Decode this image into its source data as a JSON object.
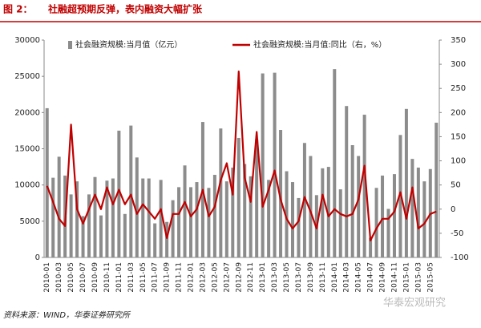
{
  "header": {
    "figure": "图 2：",
    "title": "社融超预期反弹，表内融资大幅扩张"
  },
  "chart_data": {
    "type": "bar-line",
    "categories": [
      "2010-01",
      null,
      "2010-03",
      null,
      "2010-05",
      null,
      "2010-07",
      null,
      "2010-09",
      null,
      "2010-11",
      null,
      "2011-01",
      null,
      "2011-03",
      null,
      "2011-05",
      null,
      "2011-07",
      null,
      "2011-09",
      null,
      "2011-11",
      null,
      "2012-01",
      null,
      "2012-03",
      null,
      "2012-05",
      null,
      "2012-07",
      null,
      "2012-09",
      null,
      "2012-11",
      null,
      "2013-01",
      null,
      "2013-03",
      null,
      "2013-05",
      null,
      "2013-07",
      null,
      "2013-09",
      null,
      "2013-11",
      null,
      "2014-01",
      null,
      "2014-03",
      null,
      "2014-05",
      null,
      "2014-07",
      null,
      "2014-09",
      null,
      "2014-11",
      null,
      "2015-01",
      null,
      "2015-03",
      null,
      "2015-05",
      null
    ],
    "series": [
      {
        "name": "社会融资规模:当月值（亿元）",
        "color": "#8c8c8c",
        "kind": "bar",
        "values": [
          20600,
          11000,
          13900,
          11300,
          8700,
          10500,
          5700,
          8700,
          11100,
          5800,
          10600,
          10900,
          17500,
          6000,
          18200,
          13800,
          10900,
          10900,
          4700,
          10700,
          4900,
          7900,
          9700,
          12700,
          9700,
          10400,
          18700,
          9600,
          11400,
          17800,
          10500,
          12400,
          16500,
          12900,
          11200,
          16300,
          25400,
          10700,
          25500,
          17600,
          11900,
          10400,
          8200,
          15800,
          14000,
          8600,
          12300,
          12500,
          26000,
          9400,
          20900,
          15500,
          14000,
          19700,
          2700,
          9600,
          11300,
          6700,
          11500,
          16900,
          20500,
          13600,
          12400,
          10500,
          12200,
          18600
        ]
      },
      {
        "name": "社会融资规模:当月值:同比（右，%）",
        "color": "#c00000",
        "kind": "line",
        "axis": "y2",
        "values": [
          48,
          15,
          -20,
          -35,
          175,
          0,
          -30,
          0,
          30,
          0,
          45,
          10,
          40,
          10,
          30,
          -10,
          10,
          -5,
          -20,
          0,
          -60,
          -10,
          -10,
          15,
          -15,
          0,
          40,
          -15,
          5,
          60,
          95,
          30,
          285,
          65,
          15,
          160,
          5,
          40,
          80,
          20,
          -20,
          -40,
          -25,
          25,
          -5,
          -40,
          30,
          -15,
          0,
          -10,
          -15,
          -10,
          20,
          90,
          -65,
          -40,
          -20,
          -20,
          -5,
          35,
          -20,
          45,
          -40,
          -30,
          -10,
          -5
        ]
      }
    ],
    "ylim": [
      0,
      30000
    ],
    "yticks": [
      0,
      5000,
      10000,
      15000,
      20000,
      25000,
      30000
    ],
    "y2lim": [
      -100,
      350
    ],
    "y2ticks": [
      -100,
      -50,
      0,
      50,
      100,
      150,
      200,
      250,
      300,
      350
    ]
  },
  "footer": {
    "source": "资料来源：WIND，华泰证券研究所",
    "watermark": "华泰宏观研究"
  }
}
